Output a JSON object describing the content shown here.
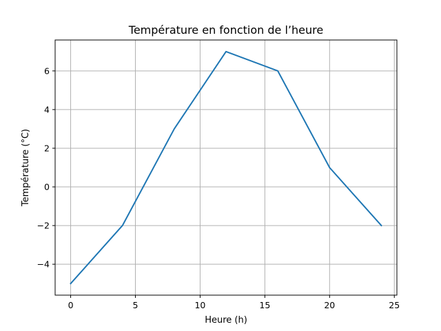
{
  "chart_data": {
    "type": "line",
    "title": "Température en fonction de l’heure",
    "xlabel": "Heure (h)",
    "ylabel": "Température (°C)",
    "x": [
      0,
      4,
      8,
      12,
      16,
      20,
      24
    ],
    "series": [
      {
        "values": [
          -5,
          -2,
          3,
          7,
          6,
          1,
          -2
        ],
        "color": "#1f77b4"
      }
    ],
    "xlim": [
      -1.2,
      25.2
    ],
    "ylim": [
      -5.6,
      7.6
    ],
    "xticks": [
      0,
      5,
      10,
      15,
      20,
      25
    ],
    "yticks": [
      -4,
      -2,
      0,
      2,
      4,
      6
    ],
    "xtick_labels": [
      "0",
      "5",
      "10",
      "15",
      "20",
      "25"
    ],
    "ytick_labels": [
      "−4",
      "−2",
      "0",
      "2",
      "4",
      "6"
    ],
    "grid": true,
    "legend": false
  }
}
